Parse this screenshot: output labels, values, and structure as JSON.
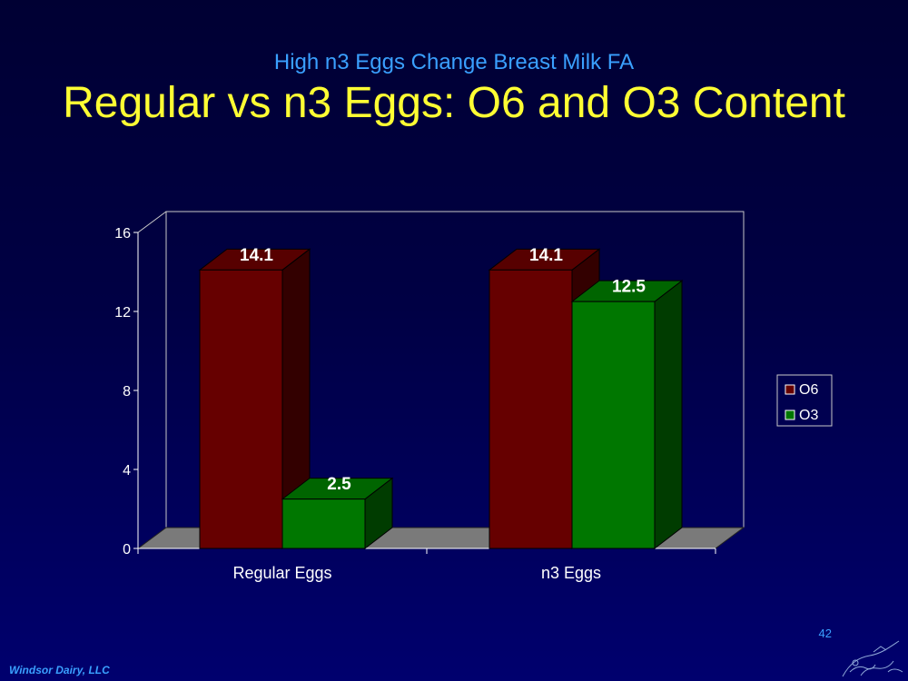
{
  "slide": {
    "subtitle": "High n3 Eggs Change Breast Milk FA",
    "title": "Regular vs n3 Eggs: O6 and O3 Content",
    "page_number": "42",
    "footer": "Windsor Dairy, LLC",
    "background": "#000044",
    "title_color": "#ffff33",
    "subtitle_color": "#3aa0ff",
    "logo_icon": "line-art-logo-icon"
  },
  "chart_data": {
    "type": "bar",
    "style": "3d-clustered-column",
    "categories": [
      "Regular Eggs",
      "n3 Eggs"
    ],
    "series": [
      {
        "name": "O6",
        "values": [
          14.1,
          14.1
        ],
        "color": "#660000"
      },
      {
        "name": "O3",
        "values": [
          2.5,
          12.5
        ],
        "color": "#007700"
      }
    ],
    "data_labels": [
      [
        "14.1",
        "14.1"
      ],
      [
        "2.5",
        "12.5"
      ]
    ],
    "title": "",
    "xlabel": "",
    "ylabel": "",
    "ylim": [
      0,
      16
    ],
    "yticks": [
      0,
      4,
      8,
      12,
      16
    ],
    "grid": false,
    "legend": "right"
  }
}
